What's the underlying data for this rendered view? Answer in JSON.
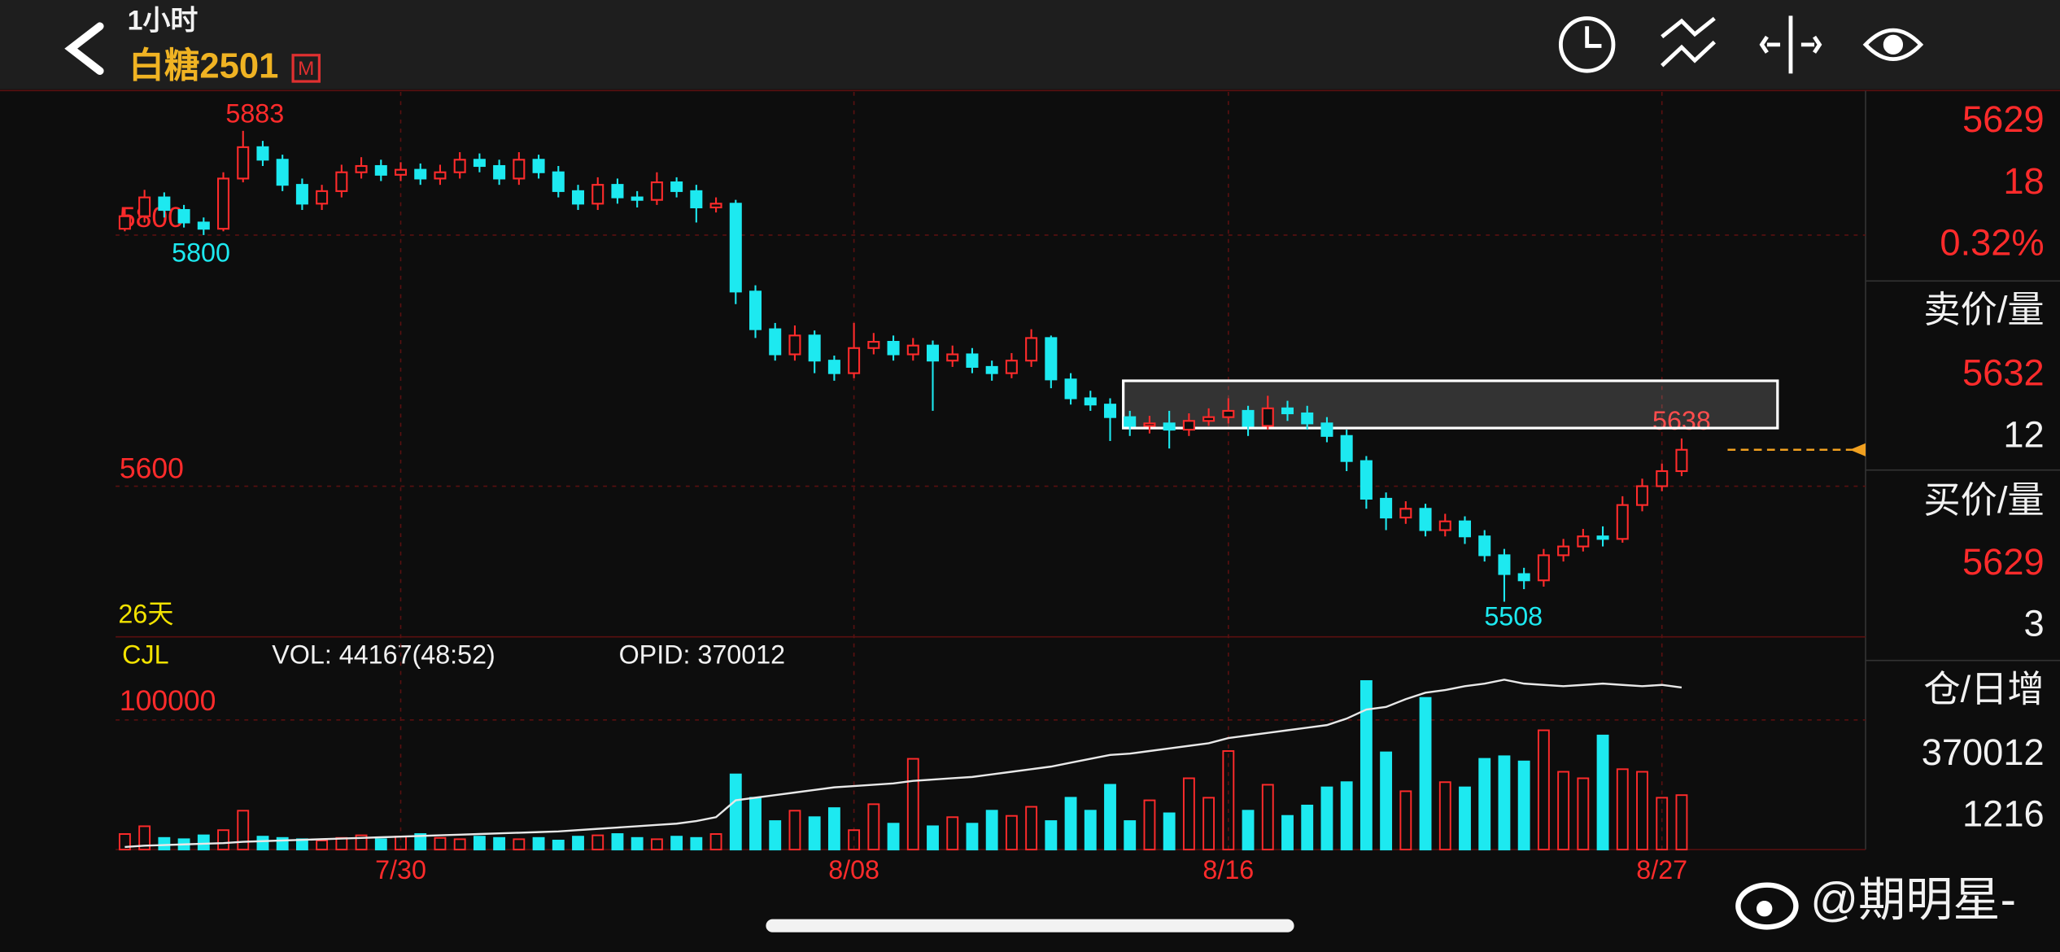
{
  "header": {
    "interval": "1小时",
    "symbol": "白糖2501",
    "badge": "M"
  },
  "quote": {
    "last": 5629,
    "change": 18,
    "change_pct": "0.32%",
    "ask_label": "卖价/量",
    "ask_price": 5632,
    "ask_qty": 12,
    "bid_label": "买价/量",
    "bid_price": 5629,
    "bid_qty": 3,
    "oi_label": "仓/日增",
    "oi": 370012,
    "oi_change": 1216
  },
  "watermark": "@期明星-",
  "chart_data": [
    {
      "type": "candlestick",
      "period_label": "26天",
      "up_color": "#ff2b2b",
      "down_color": "#1de9f0",
      "grid": true,
      "categories": [
        null,
        null,
        null,
        null,
        null,
        null,
        null,
        null,
        null,
        null,
        null,
        null,
        null,
        null,
        "7/30",
        null,
        null,
        null,
        null,
        null,
        null,
        null,
        null,
        null,
        null,
        null,
        null,
        null,
        null,
        null,
        null,
        null,
        null,
        null,
        null,
        null,
        null,
        "8/08",
        null,
        null,
        null,
        null,
        null,
        null,
        null,
        null,
        null,
        null,
        null,
        null,
        null,
        null,
        null,
        null,
        null,
        null,
        "8/16",
        null,
        null,
        null,
        null,
        null,
        null,
        null,
        null,
        null,
        null,
        null,
        null,
        null,
        null,
        null,
        null,
        null,
        null,
        null,
        null,
        null,
        "8/27",
        null
      ],
      "open": [
        5805,
        5815,
        5830,
        5820,
        5810,
        5805,
        5845,
        5870,
        5860,
        5840,
        5825,
        5835,
        5850,
        5855,
        5848,
        5852,
        5845,
        5850,
        5860,
        5855,
        5845,
        5860,
        5850,
        5835,
        5825,
        5840,
        5830,
        5828,
        5842,
        5835,
        5822,
        5825,
        5755,
        5725,
        5705,
        5720,
        5700,
        5690,
        5710,
        5715,
        5705,
        5712,
        5700,
        5705,
        5695,
        5690,
        5700,
        5718,
        5685,
        5670,
        5665,
        5655,
        5648,
        5650,
        5645,
        5652,
        5655,
        5660,
        5648,
        5662,
        5658,
        5650,
        5640,
        5620,
        5590,
        5575,
        5582,
        5565,
        5572,
        5560,
        5545,
        5530,
        5525,
        5545,
        5552,
        5560,
        5558,
        5585,
        5600,
        5612
      ],
      "high": [
        5822,
        5836,
        5834,
        5824,
        5814,
        5850,
        5883,
        5875,
        5864,
        5845,
        5840,
        5856,
        5862,
        5860,
        5858,
        5857,
        5856,
        5866,
        5865,
        5860,
        5866,
        5864,
        5855,
        5840,
        5846,
        5845,
        5835,
        5850,
        5846,
        5840,
        5830,
        5828,
        5760,
        5730,
        5728,
        5724,
        5704,
        5730,
        5722,
        5720,
        5718,
        5716,
        5712,
        5710,
        5700,
        5706,
        5725,
        5720,
        5690,
        5676,
        5670,
        5660,
        5656,
        5660,
        5658,
        5662,
        5670,
        5664,
        5672,
        5668,
        5664,
        5655,
        5645,
        5624,
        5595,
        5588,
        5586,
        5578,
        5576,
        5565,
        5550,
        5535,
        5550,
        5558,
        5566,
        5568,
        5592,
        5606,
        5618,
        5638
      ],
      "low": [
        5803,
        5810,
        5814,
        5806,
        5800,
        5803,
        5842,
        5855,
        5835,
        5820,
        5820,
        5830,
        5845,
        5843,
        5843,
        5840,
        5840,
        5845,
        5850,
        5840,
        5840,
        5845,
        5830,
        5820,
        5820,
        5825,
        5822,
        5824,
        5830,
        5810,
        5818,
        5745,
        5718,
        5700,
        5700,
        5690,
        5684,
        5686,
        5705,
        5700,
        5700,
        5660,
        5695,
        5690,
        5684,
        5686,
        5695,
        5678,
        5665,
        5660,
        5636,
        5640,
        5642,
        5630,
        5640,
        5648,
        5650,
        5640,
        5645,
        5652,
        5645,
        5635,
        5612,
        5582,
        5565,
        5570,
        5560,
        5560,
        5554,
        5540,
        5508,
        5518,
        5520,
        5540,
        5548,
        5552,
        5555,
        5580,
        5596,
        5608
      ],
      "close": [
        5815,
        5830,
        5820,
        5810,
        5805,
        5845,
        5870,
        5860,
        5840,
        5825,
        5835,
        5850,
        5855,
        5848,
        5852,
        5845,
        5850,
        5860,
        5855,
        5845,
        5860,
        5850,
        5835,
        5825,
        5840,
        5830,
        5828,
        5842,
        5835,
        5822,
        5825,
        5755,
        5725,
        5705,
        5720,
        5700,
        5690,
        5710,
        5715,
        5705,
        5712,
        5700,
        5705,
        5695,
        5690,
        5700,
        5718,
        5685,
        5670,
        5665,
        5655,
        5648,
        5650,
        5645,
        5652,
        5655,
        5660,
        5648,
        5662,
        5658,
        5650,
        5640,
        5620,
        5590,
        5575,
        5582,
        5565,
        5572,
        5560,
        5545,
        5530,
        5525,
        5545,
        5552,
        5560,
        5558,
        5585,
        5600,
        5612,
        5629
      ],
      "ylim": [
        5480,
        5914
      ],
      "yticks": [
        5600,
        5800
      ]
    },
    {
      "type": "bar",
      "indicator": "CJL",
      "vol_label": "VOL: 44167(48:52)",
      "oi_label": "OPID: 370012",
      "grid": true,
      "line_color": "#e8e8e8",
      "values": [
        12000,
        18000,
        9000,
        8000,
        11000,
        15000,
        30000,
        10000,
        9000,
        8000,
        7000,
        9000,
        11000,
        8000,
        10000,
        12000,
        9000,
        8000,
        10000,
        9000,
        8000,
        9000,
        7000,
        10000,
        11000,
        12000,
        9000,
        8000,
        10000,
        9000,
        12000,
        58000,
        40000,
        22000,
        30000,
        25000,
        32000,
        15000,
        35000,
        20000,
        70000,
        18000,
        25000,
        20000,
        30000,
        26000,
        33000,
        22000,
        40000,
        30000,
        50000,
        22000,
        38000,
        28000,
        55000,
        40000,
        76000,
        30000,
        50000,
        26000,
        34000,
        48000,
        52000,
        130000,
        75000,
        45000,
        117000,
        52000,
        48000,
        70000,
        72000,
        68000,
        92000,
        60000,
        55000,
        88000,
        62000,
        60000,
        40000,
        42000
      ],
      "oi_line": [
        2000,
        3000,
        3500,
        4000,
        4500,
        5000,
        6000,
        6500,
        7000,
        7500,
        8000,
        8500,
        9000,
        9500,
        10000,
        10500,
        11000,
        11500,
        12000,
        12500,
        13000,
        13500,
        14000,
        15000,
        16000,
        17000,
        18000,
        19000,
        20000,
        22000,
        25000,
        38000,
        40000,
        42000,
        44000,
        46000,
        48000,
        49000,
        50000,
        51000,
        53000,
        54000,
        55000,
        56000,
        58000,
        60000,
        62000,
        64000,
        67000,
        70000,
        73000,
        74000,
        76000,
        78000,
        80000,
        82000,
        86000,
        88000,
        90000,
        92000,
        94000,
        96000,
        101000,
        108000,
        110000,
        116000,
        121000,
        123000,
        126000,
        128000,
        131000,
        128000,
        127000,
        126000,
        127000,
        128000,
        127000,
        126000,
        127000,
        125000
      ],
      "ylim": [
        0,
        160000
      ],
      "yticks": [
        100000
      ]
    }
  ]
}
